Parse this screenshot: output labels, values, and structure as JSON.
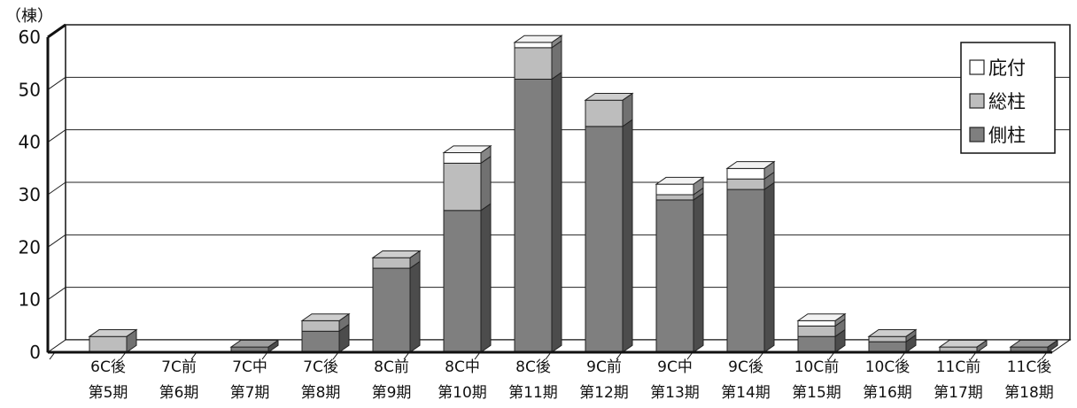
{
  "chart_data": {
    "type": "bar",
    "stacked": true,
    "style": "3d",
    "unit_label": "（棟）",
    "ylim": [
      0,
      60
    ],
    "yticks": [
      "0",
      "10",
      "20",
      "30",
      "40",
      "50",
      "60"
    ],
    "grid": true,
    "legend_position": "top-right",
    "categories": [
      {
        "line1": "6C後",
        "line2": "第5期"
      },
      {
        "line1": "7C前",
        "line2": "第6期"
      },
      {
        "line1": "7C中",
        "line2": "第7期"
      },
      {
        "line1": "7C後",
        "line2": "第8期"
      },
      {
        "line1": "8C前",
        "line2": "第9期"
      },
      {
        "line1": "8C中",
        "line2": "第10期"
      },
      {
        "line1": "8C後",
        "line2": "第11期"
      },
      {
        "line1": "9C前",
        "line2": "第12期"
      },
      {
        "line1": "9C中",
        "line2": "第13期"
      },
      {
        "line1": "9C後",
        "line2": "第14期"
      },
      {
        "line1": "10C前",
        "line2": "第15期"
      },
      {
        "line1": "10C後",
        "line2": "第16期"
      },
      {
        "line1": "11C前",
        "line2": "第17期"
      },
      {
        "line1": "11C後",
        "line2": "第18期"
      }
    ],
    "series": [
      {
        "name": "側柱",
        "color": "#7f7f7f",
        "values": [
          0,
          0,
          1,
          4,
          16,
          27,
          52,
          43,
          29,
          31,
          3,
          2,
          0,
          1
        ]
      },
      {
        "name": "総柱",
        "color": "#bdbdbd",
        "values": [
          3,
          0,
          0,
          2,
          2,
          9,
          6,
          5,
          1,
          2,
          2,
          1,
          1,
          0
        ]
      },
      {
        "name": "庇付",
        "color": "#ffffff",
        "values": [
          0,
          0,
          0,
          0,
          0,
          2,
          1,
          0,
          2,
          2,
          1,
          0,
          0,
          0
        ]
      }
    ],
    "legend": [
      "庇付",
      "総柱",
      "側柱"
    ]
  }
}
